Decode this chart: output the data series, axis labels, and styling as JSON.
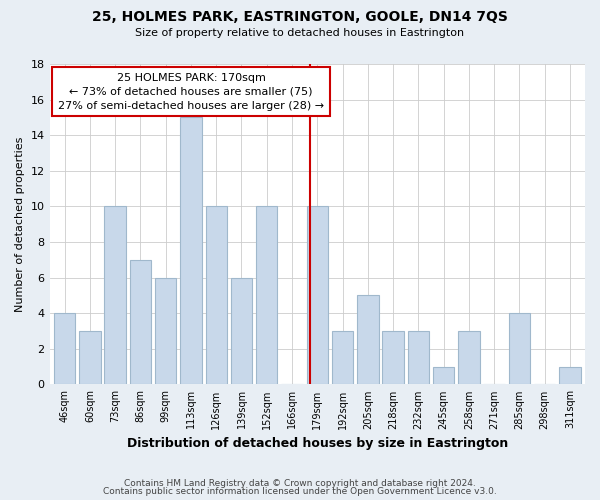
{
  "title": "25, HOLMES PARK, EASTRINGTON, GOOLE, DN14 7QS",
  "subtitle": "Size of property relative to detached houses in Eastrington",
  "xlabel": "Distribution of detached houses by size in Eastrington",
  "ylabel": "Number of detached properties",
  "bar_color": "#c8d8ea",
  "bar_edge_color": "#a0b8cc",
  "bins": [
    "46sqm",
    "60sqm",
    "73sqm",
    "86sqm",
    "99sqm",
    "113sqm",
    "126sqm",
    "139sqm",
    "152sqm",
    "166sqm",
    "179sqm",
    "192sqm",
    "205sqm",
    "218sqm",
    "232sqm",
    "245sqm",
    "258sqm",
    "271sqm",
    "285sqm",
    "298sqm",
    "311sqm"
  ],
  "counts": [
    4,
    3,
    10,
    7,
    6,
    15,
    10,
    6,
    10,
    0,
    10,
    3,
    5,
    3,
    3,
    1,
    3,
    0,
    4,
    0,
    1
  ],
  "vline_bin_index": 9.7,
  "annotation_title": "25 HOLMES PARK: 170sqm",
  "annotation_line1": "← 73% of detached houses are smaller (75)",
  "annotation_line2": "27% of semi-detached houses are larger (28) →",
  "vline_color": "#cc0000",
  "annotation_box_edge": "#cc0000",
  "footer1": "Contains HM Land Registry data © Crown copyright and database right 2024.",
  "footer2": "Contains public sector information licensed under the Open Government Licence v3.0.",
  "ylim": [
    0,
    18
  ],
  "yticks": [
    0,
    2,
    4,
    6,
    8,
    10,
    12,
    14,
    16,
    18
  ],
  "background_color": "#e8eef4",
  "plot_bg_color": "#ffffff"
}
